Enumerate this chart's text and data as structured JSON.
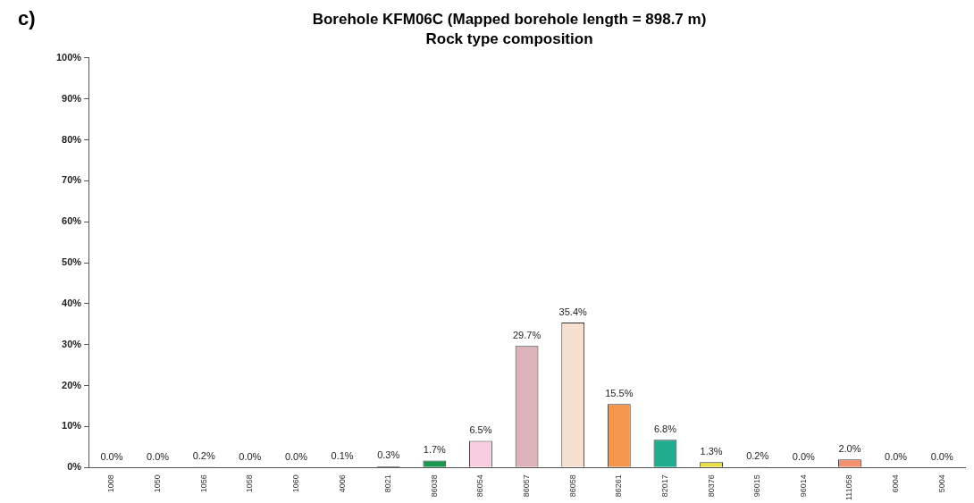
{
  "chart_data": {
    "type": "bar",
    "title": "Borehole KFM06C (Mapped borehole length = 898.7 m)",
    "subtitle": "Rock type composition",
    "annotations": [
      "c)"
    ],
    "categories": [
      "1008",
      "1050",
      "1056",
      "1058",
      "1060",
      "4006",
      "8021",
      "86038",
      "86054",
      "86057",
      "86058",
      "86261",
      "82017",
      "80376",
      "96015",
      "96014",
      "111058",
      "6004",
      "5004"
    ],
    "values": [
      0.0,
      0.0,
      0.2,
      0.0,
      0.0,
      0.1,
      0.3,
      1.7,
      6.5,
      29.7,
      35.4,
      15.5,
      6.8,
      1.3,
      0.2,
      0.0,
      2.0,
      0.0,
      0.0
    ],
    "value_labels": [
      "0.0%",
      "0.0%",
      "0.2%",
      "0.0%",
      "0.0%",
      "0.1%",
      "0.3%",
      "1.7%",
      "6.5%",
      "29.7%",
      "35.4%",
      "15.5%",
      "6.8%",
      "1.3%",
      "0.2%",
      "0.0%",
      "2.0%",
      "0.0%",
      "0.0%"
    ],
    "colors": [
      "#808080",
      "#808080",
      "#404040",
      "#808080",
      "#808080",
      "#404040",
      "#101010",
      "#1a9850",
      "#f9cde0",
      "#dbb3b9",
      "#f8e0d0",
      "#f4964c",
      "#1fad8e",
      "#e8e040",
      "#404040",
      "#808080",
      "#f59070",
      "#808080",
      "#808080"
    ],
    "ylim": [
      0,
      100
    ],
    "yticks": [
      {
        "value": 0,
        "label": "0%"
      },
      {
        "value": 10,
        "label": "10%"
      },
      {
        "value": 20,
        "label": "20%"
      },
      {
        "value": 30,
        "label": "30%"
      },
      {
        "value": 40,
        "label": "40%"
      },
      {
        "value": 50,
        "label": "50%"
      },
      {
        "value": 60,
        "label": "60%"
      },
      {
        "value": 70,
        "label": "70%"
      },
      {
        "value": 80,
        "label": "80%"
      },
      {
        "value": 90,
        "label": "90%"
      },
      {
        "value": 100,
        "label": "100%"
      }
    ],
    "grid": false,
    "legend": false
  }
}
